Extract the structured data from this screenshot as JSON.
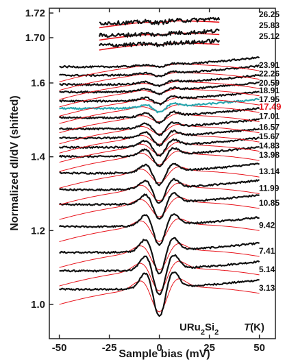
{
  "chart_data": {
    "type": "line",
    "xlabel": "Sample bias (mV)",
    "ylabel": "Normalized dI/dV (shifted)",
    "xlim": [
      -55,
      58
    ],
    "ylim": [
      0.965,
      1.73
    ],
    "x_ticks": [
      -50,
      -25,
      0,
      25,
      50
    ],
    "y_ticks_main": [
      1.0,
      1.2,
      1.4,
      1.6
    ],
    "y_ticks_inset": [
      1.7,
      1.72
    ],
    "legend_title": "T(K)",
    "compound": "URu2Si2",
    "highlight_color": "#e8141c",
    "data_color": "#111111",
    "fit_color": "#e8141c",
    "cyan_trace_color": "#2aa8b0",
    "series": [
      {
        "name": "3.13",
        "offset": 1.045,
        "depth": 0.095,
        "pos": "main"
      },
      {
        "name": "5.14",
        "offset": 1.095,
        "depth": 0.085,
        "pos": "main"
      },
      {
        "name": "7.41",
        "offset": 1.145,
        "depth": 0.075,
        "pos": "main"
      },
      {
        "name": "9.42",
        "offset": 1.215,
        "depth": 0.065,
        "pos": "main"
      },
      {
        "name": "10.85",
        "offset": 1.275,
        "depth": 0.055,
        "pos": "main"
      },
      {
        "name": "11.99",
        "offset": 1.315,
        "depth": 0.05,
        "pos": "main"
      },
      {
        "name": "13.14",
        "offset": 1.36,
        "depth": 0.045,
        "pos": "main"
      },
      {
        "name": "13.98",
        "offset": 1.405,
        "depth": 0.038,
        "pos": "main"
      },
      {
        "name": "14.83",
        "offset": 1.43,
        "depth": 0.034,
        "pos": "main"
      },
      {
        "name": "15.67",
        "offset": 1.455,
        "depth": 0.03,
        "pos": "main"
      },
      {
        "name": "16.57",
        "offset": 1.48,
        "depth": 0.026,
        "pos": "main"
      },
      {
        "name": "17.01",
        "offset": 1.51,
        "depth": 0.022,
        "pos": "main"
      },
      {
        "name": "17.49",
        "offset": 1.535,
        "depth": 0.018,
        "pos": "main",
        "highlight": true
      },
      {
        "name": "17.95",
        "offset": 1.555,
        "depth": 0.015,
        "pos": "main"
      },
      {
        "name": "18.91",
        "offset": 1.58,
        "depth": 0.012,
        "pos": "main"
      },
      {
        "name": "20.59",
        "offset": 1.6,
        "depth": 0.01,
        "pos": "main"
      },
      {
        "name": "22.26",
        "offset": 1.625,
        "depth": 0.008,
        "pos": "main"
      },
      {
        "name": "23.91",
        "offset": 1.648,
        "depth": 0.006,
        "pos": "main"
      },
      {
        "name": "25.12",
        "offset": 1.695,
        "depth": 0.004,
        "pos": "inset"
      },
      {
        "name": "25.83",
        "offset": 1.703,
        "depth": 0.004,
        "pos": "inset"
      },
      {
        "name": "26.25",
        "offset": 1.713,
        "depth": 0.004,
        "pos": "inset"
      }
    ]
  }
}
